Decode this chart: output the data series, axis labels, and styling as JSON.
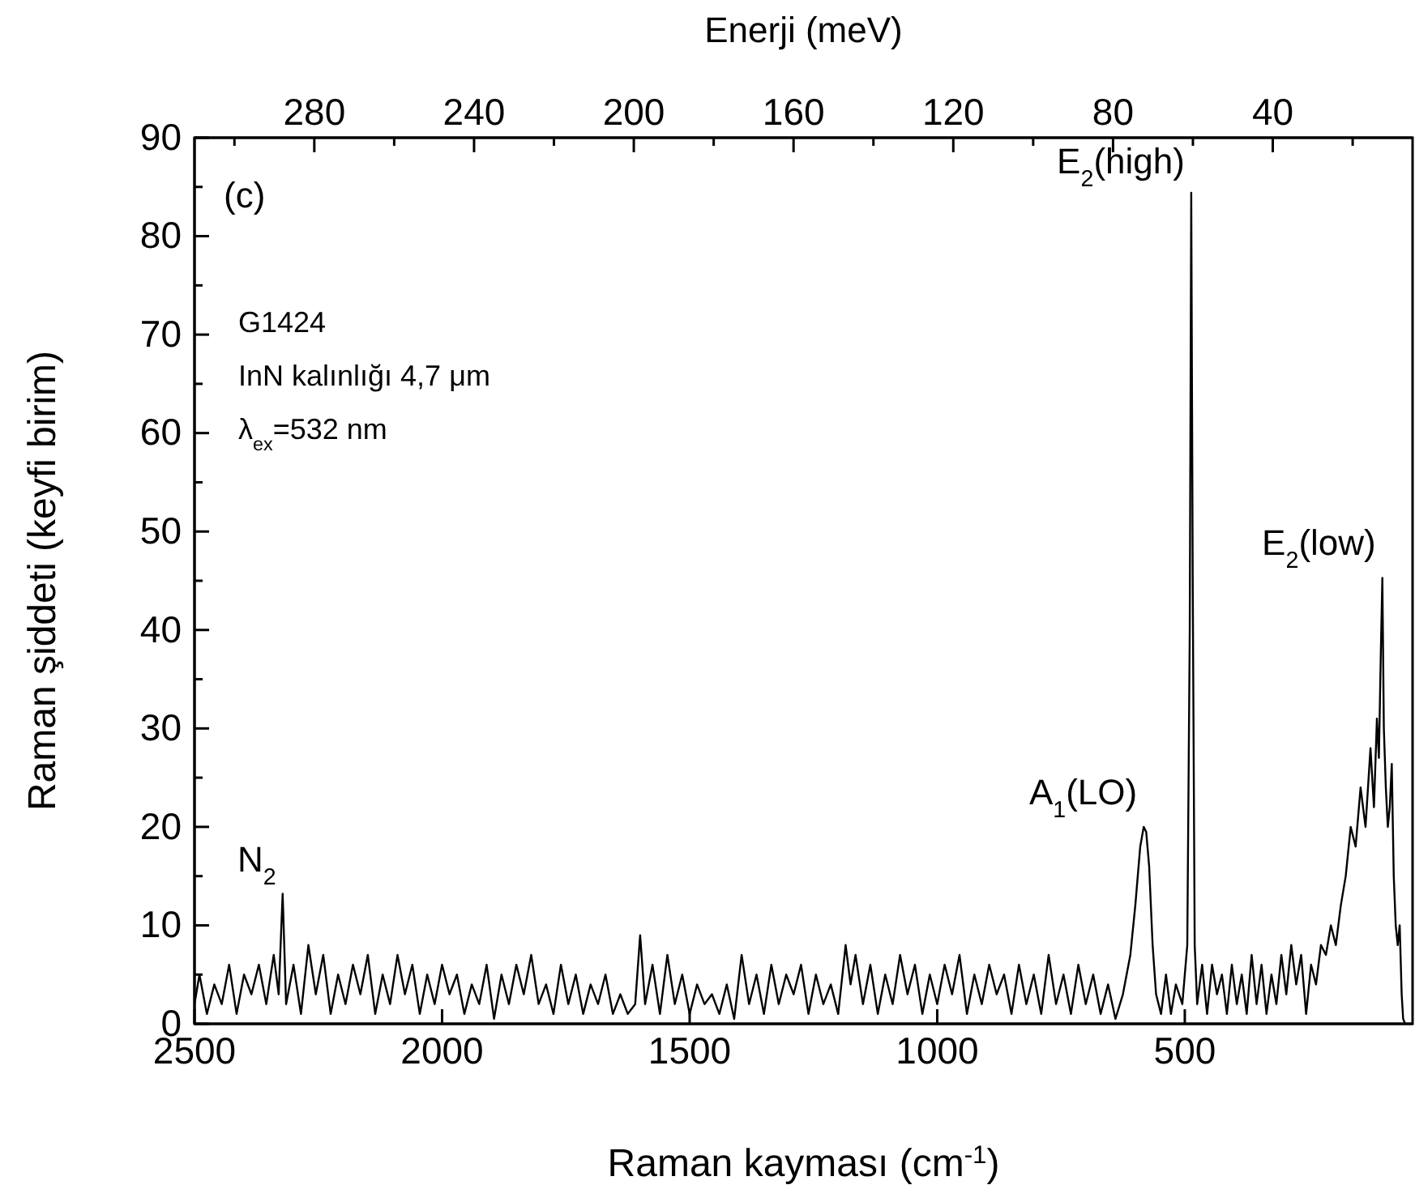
{
  "chart_data": {
    "type": "line",
    "xlabel": "Raman kayması (cm$^{-1}$)",
    "ylabel": "Raman şiddeti (keyfi birim)",
    "x2label": "Enerji (meV)",
    "xlim": [
      2500,
      40
    ],
    "xticks": [
      2500,
      2000,
      1500,
      1000,
      500
    ],
    "x2lim": [
      310,
      5
    ],
    "x2ticks": [
      {
        "value": 300,
        "label": null
      },
      280,
      {
        "value": 260,
        "label": null
      },
      240,
      {
        "value": 220,
        "label": null
      },
      200,
      {
        "value": 180,
        "label": null
      },
      160,
      {
        "value": 140,
        "label": null
      },
      120,
      {
        "value": 100,
        "label": null
      },
      80,
      {
        "value": 60,
        "label": null
      },
      40,
      {
        "value": 20,
        "label": null
      }
    ],
    "ylim": [
      0,
      90
    ],
    "yticks": [
      0,
      {
        "value": 5,
        "label": null
      },
      10,
      {
        "value": 15,
        "label": null
      },
      20,
      {
        "value": 25,
        "label": null
      },
      30,
      {
        "value": 35,
        "label": null
      },
      40,
      {
        "value": 45,
        "label": null
      },
      50,
      {
        "value": 55,
        "label": null
      },
      60,
      {
        "value": 65,
        "label": null
      },
      70,
      {
        "value": 75,
        "label": null
      },
      80,
      {
        "value": 85,
        "label": null
      },
      90
    ],
    "grid": false,
    "marker": "none",
    "line_style": "solid",
    "annotations": [
      "(c)",
      "G1424",
      "InN kalınlığı 4,7 μm",
      "λ$_{ex}$=532 nm",
      {
        "text": "N$_{2}$",
        "x": 2322,
        "y": 13.2
      },
      {
        "text": "A$_{1}$(LO)",
        "x": 583,
        "y": 20
      },
      {
        "text": "E$_{2}$(high)",
        "x": 487,
        "y": 84.4
      },
      {
        "text": "E$_{2}$(low)",
        "x": 101,
        "y": 45.3
      }
    ],
    "series": [
      {
        "color": "#000000",
        "x": [
          2500,
          2490,
          2475,
          2460,
          2445,
          2430,
          2415,
          2400,
          2385,
          2370,
          2355,
          2340,
          2330,
          2322,
          2315,
          2300,
          2285,
          2270,
          2255,
          2240,
          2225,
          2210,
          2195,
          2180,
          2165,
          2150,
          2135,
          2120,
          2105,
          2090,
          2075,
          2060,
          2045,
          2030,
          2015,
          2000,
          1985,
          1970,
          1955,
          1940,
          1925,
          1910,
          1895,
          1880,
          1865,
          1850,
          1835,
          1820,
          1805,
          1790,
          1775,
          1760,
          1745,
          1730,
          1715,
          1700,
          1685,
          1670,
          1655,
          1640,
          1625,
          1610,
          1600,
          1590,
          1575,
          1560,
          1545,
          1530,
          1515,
          1500,
          1485,
          1470,
          1455,
          1440,
          1425,
          1410,
          1395,
          1380,
          1365,
          1350,
          1335,
          1320,
          1305,
          1290,
          1275,
          1260,
          1245,
          1230,
          1215,
          1200,
          1185,
          1175,
          1165,
          1150,
          1135,
          1120,
          1105,
          1090,
          1075,
          1060,
          1045,
          1030,
          1015,
          1000,
          985,
          970,
          955,
          940,
          925,
          910,
          895,
          880,
          865,
          850,
          835,
          820,
          805,
          790,
          775,
          760,
          745,
          730,
          715,
          700,
          685,
          670,
          655,
          640,
          625,
          610,
          600,
          590,
          583,
          578,
          572,
          565,
          558,
          548,
          538,
          528,
          518,
          505,
          495,
          490,
          487,
          484,
          480,
          475,
          465,
          455,
          445,
          435,
          425,
          415,
          405,
          395,
          385,
          375,
          365,
          355,
          345,
          335,
          325,
          315,
          305,
          295,
          285,
          275,
          265,
          255,
          245,
          235,
          225,
          215,
          205,
          195,
          185,
          175,
          165,
          155,
          145,
          135,
          125,
          118,
          112,
          108,
          104,
          101,
          98,
          94,
          90,
          86,
          82,
          78,
          74,
          70,
          66,
          62,
          59,
          55
        ],
        "values": [
          2,
          5,
          1,
          4,
          2,
          6,
          1,
          5,
          3,
          6,
          2,
          7,
          3,
          13.2,
          2,
          6,
          1,
          8,
          3,
          7,
          1,
          5,
          2,
          6,
          3,
          7,
          1,
          5,
          2,
          7,
          3,
          6,
          1,
          5,
          2,
          6,
          3,
          5,
          1,
          4,
          2,
          6,
          0.5,
          5,
          2,
          6,
          3,
          7,
          2,
          4,
          1,
          6,
          2,
          5,
          1,
          4,
          2,
          5,
          1,
          3,
          1,
          2,
          9,
          2,
          6,
          1,
          7,
          2,
          5,
          1,
          4,
          2,
          3,
          1,
          4,
          0.5,
          7,
          2,
          5,
          1,
          6,
          2,
          5,
          3,
          6,
          1,
          5,
          2,
          4,
          1,
          8,
          4,
          7,
          2,
          6,
          1,
          5,
          2,
          7,
          3,
          6,
          1,
          5,
          2,
          6,
          3,
          7,
          1,
          5,
          2,
          6,
          3,
          5,
          1,
          6,
          2,
          5,
          1,
          7,
          2,
          5,
          1,
          6,
          2,
          5,
          1,
          4,
          0.5,
          3,
          7,
          12,
          18,
          20,
          19.5,
          16,
          8,
          3,
          1,
          5,
          1,
          4,
          2,
          8,
          40,
          84.4,
          45,
          8,
          2,
          6,
          1,
          6,
          3,
          5,
          1,
          6,
          2,
          5,
          1,
          7,
          2,
          6,
          1,
          5,
          2,
          7,
          3,
          8,
          4,
          7,
          1,
          6,
          4,
          8,
          7,
          10,
          8,
          12,
          15,
          20,
          18,
          24,
          20,
          28,
          22,
          31,
          27,
          38,
          45.3,
          30,
          24,
          20,
          22,
          26.4,
          15,
          10,
          8,
          10,
          3,
          0.5,
          0
        ]
      }
    ]
  }
}
